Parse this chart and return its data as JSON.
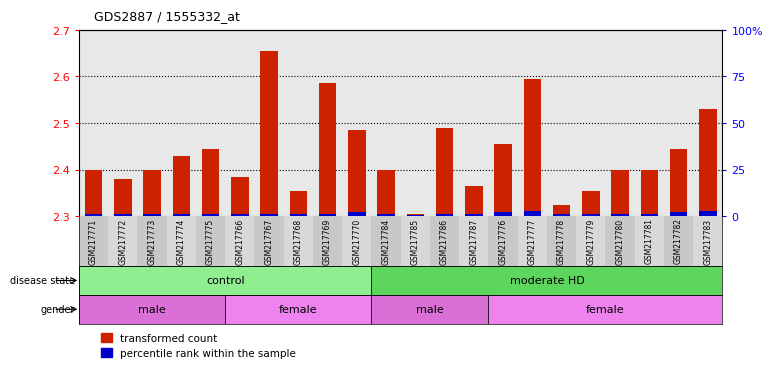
{
  "title": "GDS2887 / 1555332_at",
  "samples": [
    "GSM217771",
    "GSM217772",
    "GSM217773",
    "GSM217774",
    "GSM217775",
    "GSM217766",
    "GSM217767",
    "GSM217768",
    "GSM217769",
    "GSM217770",
    "GSM217784",
    "GSM217785",
    "GSM217786",
    "GSM217787",
    "GSM217776",
    "GSM217777",
    "GSM217778",
    "GSM217779",
    "GSM217780",
    "GSM217781",
    "GSM217782",
    "GSM217783"
  ],
  "red_values": [
    2.4,
    2.38,
    2.4,
    2.43,
    2.445,
    2.385,
    2.655,
    2.355,
    2.585,
    2.485,
    2.4,
    2.305,
    2.49,
    2.365,
    2.455,
    2.595,
    2.325,
    2.355,
    2.4,
    2.4,
    2.445,
    2.53
  ],
  "blue_values": [
    0.005,
    0.005,
    0.005,
    0.005,
    0.005,
    0.005,
    0.005,
    0.005,
    0.005,
    0.01,
    0.005,
    0.003,
    0.005,
    0.005,
    0.008,
    0.012,
    0.005,
    0.005,
    0.005,
    0.005,
    0.01,
    0.012
  ],
  "ymin": 2.3,
  "ymax": 2.7,
  "yticks": [
    2.3,
    2.4,
    2.5,
    2.6,
    2.7
  ],
  "right_yticks": [
    0,
    25,
    50,
    75,
    100
  ],
  "right_yticklabels": [
    "0",
    "25",
    "50",
    "75",
    "100%"
  ],
  "disease_state_groups": [
    {
      "label": "control",
      "start": 0,
      "end": 10,
      "color": "#90EE90"
    },
    {
      "label": "moderate HD",
      "start": 10,
      "end": 22,
      "color": "#5CD65C"
    }
  ],
  "gender_groups": [
    {
      "label": "male",
      "start": 0,
      "end": 5,
      "color": "#DA70D6"
    },
    {
      "label": "female",
      "start": 5,
      "end": 10,
      "color": "#EE82EE"
    },
    {
      "label": "male",
      "start": 10,
      "end": 14,
      "color": "#DA70D6"
    },
    {
      "label": "female",
      "start": 14,
      "end": 22,
      "color": "#EE82EE"
    }
  ],
  "bar_color_red": "#CC2200",
  "bar_color_blue": "#0000CC",
  "bar_bottom": 2.3,
  "plot_bg_color": "#E8E8E8",
  "sample_label_bg": "#D0D0D0",
  "legend_red": "transformed count",
  "legend_blue": "percentile rank within the sample"
}
